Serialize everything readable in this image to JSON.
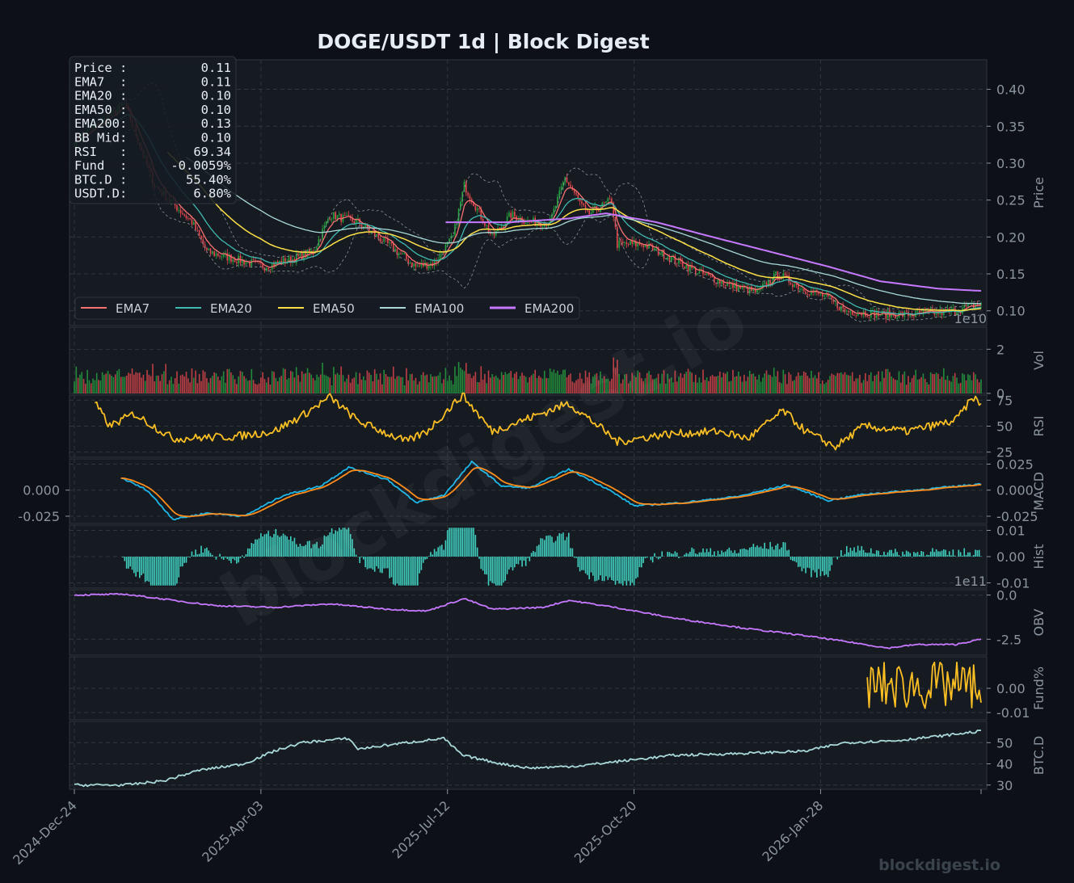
{
  "title": "DOGE/USDT  1d  |  Block Digest",
  "watermark": "blockdigest.io",
  "footer": "blockdigest.io",
  "colors": {
    "background": "#0d1117",
    "panel": "#161b22",
    "grid": "#30363d",
    "up": "#26a641",
    "down": "#e5484d",
    "ema7": "#f87171",
    "ema20": "#3fb9b0",
    "ema50": "#fde047",
    "ema100": "#a8d8d8",
    "ema200": "#c678ff",
    "rsi": "#fbbf24",
    "macd": "#1fb6e8",
    "signal": "#ff8c1a",
    "hist": "#40d0c0",
    "obv": "#c678ff",
    "fund": "#fbbf24",
    "btcd": "#a8d8d8"
  },
  "info_box": [
    {
      "label": "Price :",
      "value": "0.11"
    },
    {
      "label": "EMA7  :",
      "value": "0.11"
    },
    {
      "label": "EMA20 :",
      "value": "0.10"
    },
    {
      "label": "EMA50 :",
      "value": "0.10"
    },
    {
      "label": "EMA200:",
      "value": "0.13"
    },
    {
      "label": "BB Mid:",
      "value": "0.10"
    },
    {
      "label": "RSI   :",
      "value": "69.34"
    },
    {
      "label": "Fund  :",
      "value": "-0.0059%"
    },
    {
      "label": "BTC.D :",
      "value": "55.40%"
    },
    {
      "label": "USDT.D:",
      "value": "6.80%"
    }
  ],
  "chart_data": {
    "type": "line",
    "x_ticks": [
      "2024-Dec-24",
      "2025-Apr-03",
      "2025-Jul-12",
      "2025-Oct-20",
      "2026-Jan-28"
    ],
    "x_range": [
      "2024-12-24",
      "2026-04-24"
    ],
    "legend": {
      "placement": "lower-left",
      "entries": [
        "EMA7",
        "EMA20",
        "EMA50",
        "EMA100",
        "EMA200"
      ]
    },
    "grid": true,
    "panels": [
      {
        "id": "price",
        "ylabel": "Price",
        "type": "candlestick",
        "ylim": [
          0.08,
          0.44
        ],
        "yticks": [
          "0.10",
          "0.15",
          "0.20",
          "0.25",
          "0.30",
          "0.35",
          "0.40"
        ],
        "price_anchors": [
          [
            "2024-12-24",
            0.33
          ],
          [
            "2025-01-10",
            0.36
          ],
          [
            "2025-01-20",
            0.38
          ],
          [
            "2025-02-05",
            0.27
          ],
          [
            "2025-02-25",
            0.22
          ],
          [
            "2025-03-05",
            0.18
          ],
          [
            "2025-03-20",
            0.17
          ],
          [
            "2025-04-05",
            0.16
          ],
          [
            "2025-04-20",
            0.17
          ],
          [
            "2025-05-01",
            0.18
          ],
          [
            "2025-05-10",
            0.23
          ],
          [
            "2025-05-25",
            0.22
          ],
          [
            "2025-06-10",
            0.19
          ],
          [
            "2025-06-25",
            0.16
          ],
          [
            "2025-07-05",
            0.165
          ],
          [
            "2025-07-15",
            0.2
          ],
          [
            "2025-07-21",
            0.27
          ],
          [
            "2025-08-05",
            0.2
          ],
          [
            "2025-08-15",
            0.23
          ],
          [
            "2025-08-25",
            0.22
          ],
          [
            "2025-09-05",
            0.22
          ],
          [
            "2025-09-13",
            0.28
          ],
          [
            "2025-09-25",
            0.23
          ],
          [
            "2025-10-08",
            0.25
          ],
          [
            "2025-10-11",
            0.19
          ],
          [
            "2025-10-25",
            0.19
          ],
          [
            "2025-11-10",
            0.17
          ],
          [
            "2025-11-25",
            0.15
          ],
          [
            "2025-12-10",
            0.135
          ],
          [
            "2025-12-25",
            0.125
          ],
          [
            "2026-01-05",
            0.15
          ],
          [
            "2026-01-18",
            0.13
          ],
          [
            "2026-01-30",
            0.12
          ],
          [
            "2026-02-10",
            0.1
          ],
          [
            "2026-03-01",
            0.095
          ],
          [
            "2026-03-20",
            0.095
          ],
          [
            "2026-04-10",
            0.1
          ],
          [
            "2026-04-24",
            0.11
          ]
        ],
        "ema200_anchors": [
          [
            "2025-07-11",
            0.22
          ],
          [
            "2025-08-15",
            0.22
          ],
          [
            "2025-09-15",
            0.225
          ],
          [
            "2025-10-05",
            0.232
          ],
          [
            "2025-11-01",
            0.22
          ],
          [
            "2025-12-01",
            0.2
          ],
          [
            "2026-01-01",
            0.18
          ],
          [
            "2026-02-01",
            0.16
          ],
          [
            "2026-03-01",
            0.14
          ],
          [
            "2026-04-01",
            0.13
          ],
          [
            "2026-04-24",
            0.127
          ]
        ]
      },
      {
        "id": "volume",
        "ylabel": "Vol",
        "ylim": [
          0,
          3.0
        ],
        "yticks": [
          "0",
          "2"
        ],
        "offset_label": "1e10"
      },
      {
        "id": "rsi",
        "ylabel": "RSI",
        "ylim": [
          20,
          80
        ],
        "yticks": [
          "25",
          "50",
          "75"
        ],
        "anchors": [
          [
            "2025-01-04",
            72
          ],
          [
            "2025-01-12",
            50
          ],
          [
            "2025-01-25",
            62
          ],
          [
            "2025-02-15",
            38
          ],
          [
            "2025-03-20",
            40
          ],
          [
            "2025-04-10",
            45
          ],
          [
            "2025-04-25",
            60
          ],
          [
            "2025-05-10",
            78
          ],
          [
            "2025-05-25",
            55
          ],
          [
            "2025-06-20",
            35
          ],
          [
            "2025-07-01",
            45
          ],
          [
            "2025-07-20",
            80
          ],
          [
            "2025-08-05",
            45
          ],
          [
            "2025-08-25",
            58
          ],
          [
            "2025-09-15",
            72
          ],
          [
            "2025-10-01",
            50
          ],
          [
            "2025-10-11",
            35
          ],
          [
            "2025-11-05",
            42
          ],
          [
            "2025-12-05",
            45
          ],
          [
            "2025-12-20",
            38
          ],
          [
            "2026-01-08",
            65
          ],
          [
            "2026-01-20",
            45
          ],
          [
            "2026-02-05",
            30
          ],
          [
            "2026-02-20",
            50
          ],
          [
            "2026-03-15",
            45
          ],
          [
            "2026-04-10",
            55
          ],
          [
            "2026-04-20",
            78
          ],
          [
            "2026-04-24",
            69.34
          ]
        ]
      },
      {
        "id": "macd",
        "ylabel": "MACD",
        "ylim": [
          -0.032,
          0.03
        ],
        "yticks_right": [
          "-0.025",
          "0.000",
          "0.025"
        ],
        "yticks_left": [
          "-0.025",
          "0.000"
        ],
        "macd_anchors": [
          [
            "2025-01-18",
            0.012
          ],
          [
            "2025-02-01",
            0.0
          ],
          [
            "2025-02-15",
            -0.028
          ],
          [
            "2025-03-05",
            -0.022
          ],
          [
            "2025-03-25",
            -0.025
          ],
          [
            "2025-04-15",
            -0.005
          ],
          [
            "2025-05-05",
            0.004
          ],
          [
            "2025-05-20",
            0.022
          ],
          [
            "2025-06-10",
            0.01
          ],
          [
            "2025-06-25",
            -0.012
          ],
          [
            "2025-07-10",
            -0.005
          ],
          [
            "2025-07-25",
            0.027
          ],
          [
            "2025-08-10",
            0.004
          ],
          [
            "2025-08-25",
            0.002
          ],
          [
            "2025-09-15",
            0.02
          ],
          [
            "2025-10-05",
            0.002
          ],
          [
            "2025-10-20",
            -0.015
          ],
          [
            "2025-11-15",
            -0.012
          ],
          [
            "2025-12-15",
            -0.006
          ],
          [
            "2026-01-10",
            0.005
          ],
          [
            "2026-02-01",
            -0.01
          ],
          [
            "2026-02-20",
            -0.004
          ],
          [
            "2026-03-20",
            0.0
          ],
          [
            "2026-04-24",
            0.006
          ]
        ]
      },
      {
        "id": "hist",
        "ylabel": "Hist",
        "ylim": [
          -0.012,
          0.012
        ],
        "yticks": [
          "-0.01",
          "0.00",
          "0.01"
        ]
      },
      {
        "id": "obv",
        "ylabel": "OBV",
        "ylim": [
          -3.4,
          0.3
        ],
        "yticks": [
          "-2.5",
          "0.0"
        ],
        "offset_label": "1e11",
        "anchors": [
          [
            "2024-12-24",
            0.0
          ],
          [
            "2025-01-20",
            0.05
          ],
          [
            "2025-02-15",
            -0.3
          ],
          [
            "2025-03-10",
            -0.6
          ],
          [
            "2025-04-10",
            -0.7
          ],
          [
            "2025-05-10",
            -0.5
          ],
          [
            "2025-06-10",
            -0.8
          ],
          [
            "2025-07-01",
            -0.9
          ],
          [
            "2025-07-21",
            -0.2
          ],
          [
            "2025-08-05",
            -0.8
          ],
          [
            "2025-09-01",
            -0.7
          ],
          [
            "2025-09-15",
            -0.3
          ],
          [
            "2025-10-10",
            -0.7
          ],
          [
            "2025-11-10",
            -1.3
          ],
          [
            "2025-12-20",
            -1.9
          ],
          [
            "2026-01-20",
            -2.3
          ],
          [
            "2026-02-15",
            -2.7
          ],
          [
            "2026-03-05",
            -3.0
          ],
          [
            "2026-03-20",
            -2.8
          ],
          [
            "2026-04-10",
            -2.8
          ],
          [
            "2026-04-24",
            -2.5
          ]
        ]
      },
      {
        "id": "fund",
        "ylabel": "Fund%",
        "ylim": [
          -0.013,
          0.013
        ],
        "yticks": [
          "-0.01",
          "0.00"
        ],
        "start": "2026-02-22"
      },
      {
        "id": "btcd",
        "ylabel": "BTC.D",
        "ylim": [
          28,
          60
        ],
        "yticks": [
          "30",
          "40",
          "50"
        ],
        "anchors": [
          [
            "2024-12-24",
            30
          ],
          [
            "2025-01-20",
            30
          ],
          [
            "2025-02-10",
            32
          ],
          [
            "2025-03-01",
            37
          ],
          [
            "2025-03-25",
            40
          ],
          [
            "2025-04-10",
            46
          ],
          [
            "2025-04-25",
            50
          ],
          [
            "2025-05-20",
            52
          ],
          [
            "2025-05-25",
            47
          ],
          [
            "2025-06-20",
            50
          ],
          [
            "2025-07-10",
            52
          ],
          [
            "2025-07-20",
            44
          ],
          [
            "2025-08-10",
            40
          ],
          [
            "2025-08-25",
            38
          ],
          [
            "2025-09-20",
            39
          ],
          [
            "2025-10-10",
            41
          ],
          [
            "2025-11-10",
            44
          ],
          [
            "2025-12-20",
            45
          ],
          [
            "2026-01-20",
            46
          ],
          [
            "2026-02-10",
            50
          ],
          [
            "2026-03-10",
            51
          ],
          [
            "2026-04-01",
            53
          ],
          [
            "2026-04-24",
            55.4
          ]
        ]
      }
    ]
  }
}
